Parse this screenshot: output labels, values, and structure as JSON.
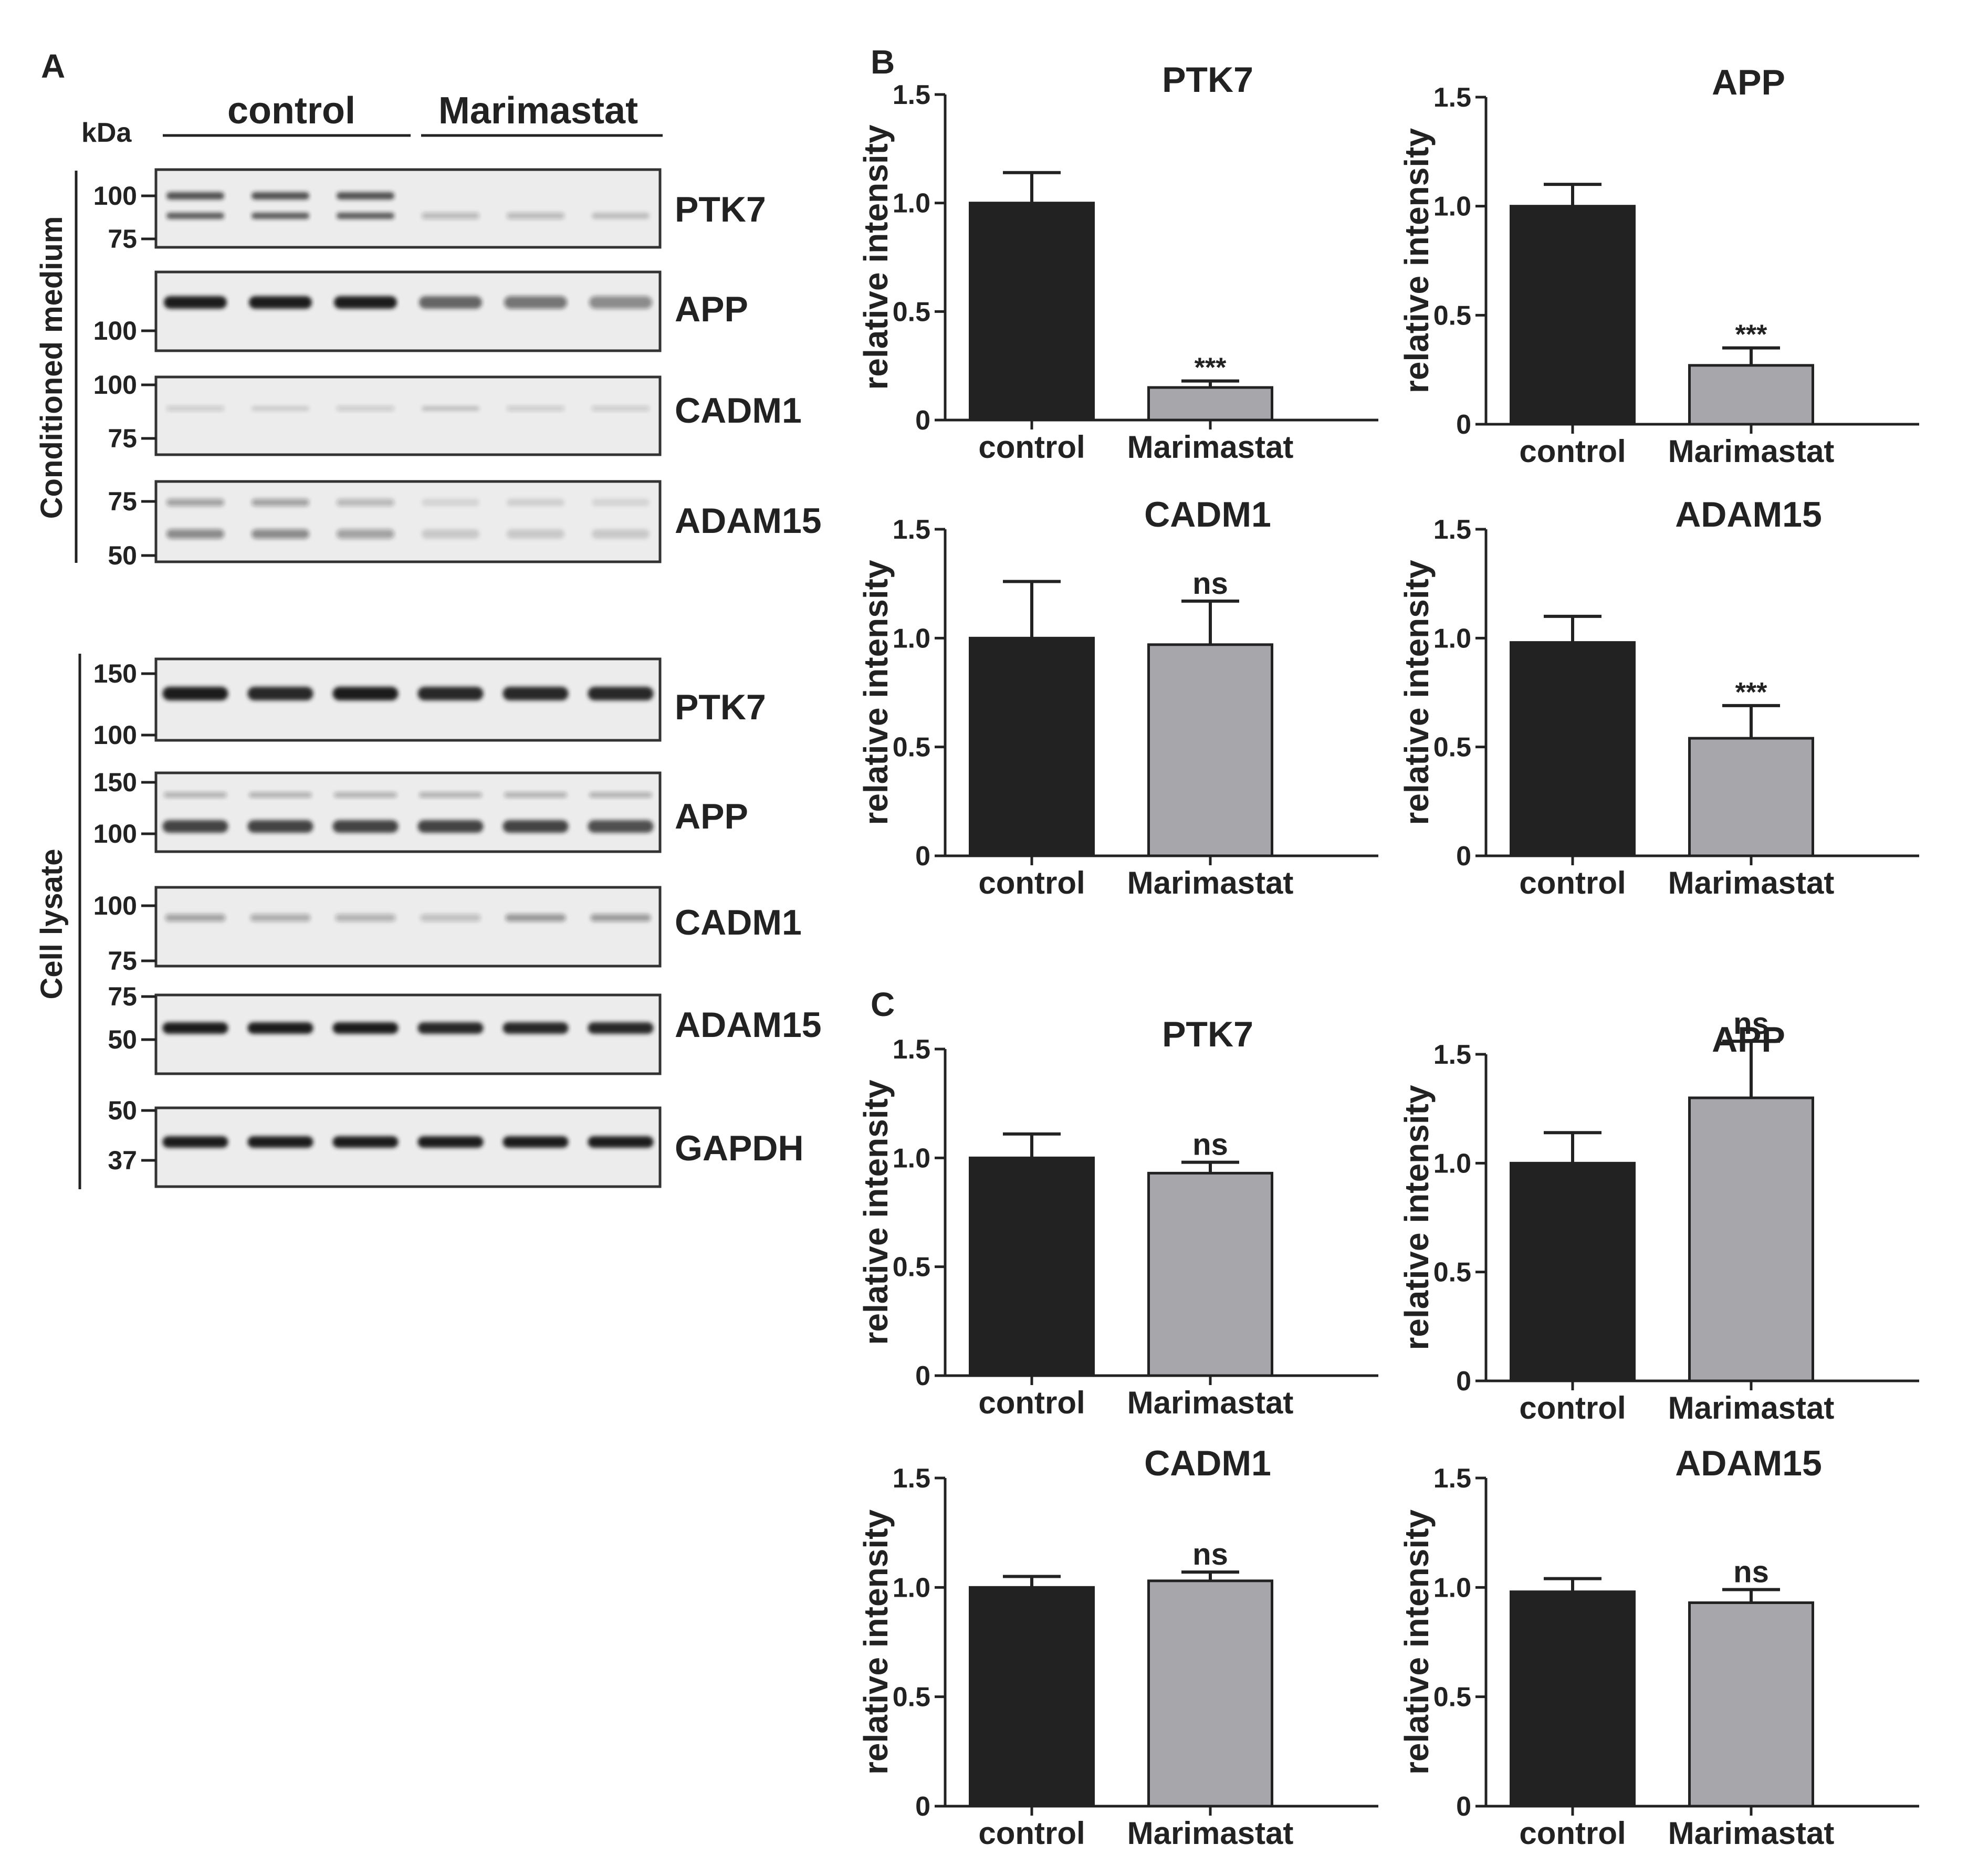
{
  "panel_letters": {
    "a": "A",
    "b": "B",
    "c": "C"
  },
  "blot": {
    "kda_label": "kDa",
    "group_labels": {
      "control": "control",
      "treated": "Marimastat"
    },
    "section_labels": {
      "medium": "Conditioned medium",
      "lysate": "Cell lysate"
    },
    "medium_blots": [
      {
        "protein": "PTK7",
        "markers": [
          "100",
          "75"
        ]
      },
      {
        "protein": "APP",
        "markers": [
          "100"
        ]
      },
      {
        "protein": "CADM1",
        "markers": [
          "100",
          "75"
        ]
      },
      {
        "protein": "ADAM15",
        "markers": [
          "75",
          "50"
        ]
      }
    ],
    "lysate_blots": [
      {
        "protein": "PTK7",
        "markers": [
          "150",
          "100"
        ]
      },
      {
        "protein": "APP",
        "markers": [
          "150",
          "100"
        ]
      },
      {
        "protein": "CADM1",
        "markers": [
          "100",
          "75"
        ]
      },
      {
        "protein": "ADAM15",
        "markers": [
          "75",
          "50"
        ]
      },
      {
        "protein": "GAPDH",
        "markers": [
          "50",
          "37"
        ]
      }
    ]
  },
  "colors": {
    "control_bar": "#222222",
    "treated_bar": "#a7a6ab",
    "blot_background": "#ececec",
    "band": "#1a1a1a"
  },
  "chart_data": [
    {
      "panel": "B",
      "type": "bar",
      "title": "PTK7",
      "ylabel": "relative intensity",
      "categories": [
        "control",
        "Marimastat"
      ],
      "values": [
        1.0,
        0.15
      ],
      "errors": [
        0.14,
        0.03
      ],
      "annotations": [
        "",
        "***"
      ],
      "ylim": [
        0,
        1.5
      ],
      "yticks": [
        "0",
        "0.5",
        "1.0",
        "1.5"
      ]
    },
    {
      "panel": "B",
      "type": "bar",
      "title": "APP",
      "ylabel": "relative intensity",
      "categories": [
        "control",
        "Marimastat"
      ],
      "values": [
        1.0,
        0.27
      ],
      "errors": [
        0.1,
        0.08
      ],
      "annotations": [
        "",
        "***"
      ],
      "ylim": [
        0,
        1.5
      ],
      "yticks": [
        "0",
        "0.5",
        "1.0",
        "1.5"
      ]
    },
    {
      "panel": "B",
      "type": "bar",
      "title": "CADM1",
      "ylabel": "relative intensity",
      "categories": [
        "control",
        "Marimastat"
      ],
      "values": [
        1.0,
        0.97
      ],
      "errors": [
        0.26,
        0.2
      ],
      "annotations": [
        "",
        "ns"
      ],
      "ylim": [
        0,
        1.5
      ],
      "yticks": [
        "0",
        "0.5",
        "1.0",
        "1.5"
      ]
    },
    {
      "panel": "B",
      "type": "bar",
      "title": "ADAM15",
      "ylabel": "relative intensity",
      "categories": [
        "control",
        "Marimastat"
      ],
      "values": [
        0.98,
        0.54
      ],
      "errors": [
        0.12,
        0.15
      ],
      "annotations": [
        "",
        "***"
      ],
      "ylim": [
        0,
        1.5
      ],
      "yticks": [
        "0",
        "0.5",
        "1.0",
        "1.5"
      ]
    },
    {
      "panel": "C",
      "type": "bar",
      "title": "PTK7",
      "ylabel": "relative intensity",
      "categories": [
        "control",
        "Marimastat"
      ],
      "values": [
        1.0,
        0.93
      ],
      "errors": [
        0.11,
        0.05
      ],
      "annotations": [
        "",
        "ns"
      ],
      "ylim": [
        0,
        1.5
      ],
      "yticks": [
        "0",
        "0.5",
        "1.0",
        "1.5"
      ]
    },
    {
      "panel": "C",
      "type": "bar",
      "title": "APP",
      "ylabel": "relative intensity",
      "categories": [
        "control",
        "Marimastat"
      ],
      "values": [
        1.0,
        1.3
      ],
      "errors": [
        0.14,
        0.26
      ],
      "annotations": [
        "",
        "ns"
      ],
      "ylim": [
        0,
        1.5
      ],
      "yticks": [
        "0",
        "0.5",
        "1.0",
        "1.5"
      ]
    },
    {
      "panel": "C",
      "type": "bar",
      "title": "CADM1",
      "ylabel": "relative intensity",
      "categories": [
        "control",
        "Marimastat"
      ],
      "values": [
        1.0,
        1.03
      ],
      "errors": [
        0.05,
        0.04
      ],
      "annotations": [
        "",
        "ns"
      ],
      "ylim": [
        0,
        1.5
      ],
      "yticks": [
        "0",
        "0.5",
        "1.0",
        "1.5"
      ]
    },
    {
      "panel": "C",
      "type": "bar",
      "title": "ADAM15",
      "ylabel": "relative intensity",
      "categories": [
        "control",
        "Marimastat"
      ],
      "values": [
        0.98,
        0.93
      ],
      "errors": [
        0.06,
        0.06
      ],
      "annotations": [
        "",
        "ns"
      ],
      "ylim": [
        0,
        1.5
      ],
      "yticks": [
        "0",
        "0.5",
        "1.0",
        "1.5"
      ]
    }
  ]
}
